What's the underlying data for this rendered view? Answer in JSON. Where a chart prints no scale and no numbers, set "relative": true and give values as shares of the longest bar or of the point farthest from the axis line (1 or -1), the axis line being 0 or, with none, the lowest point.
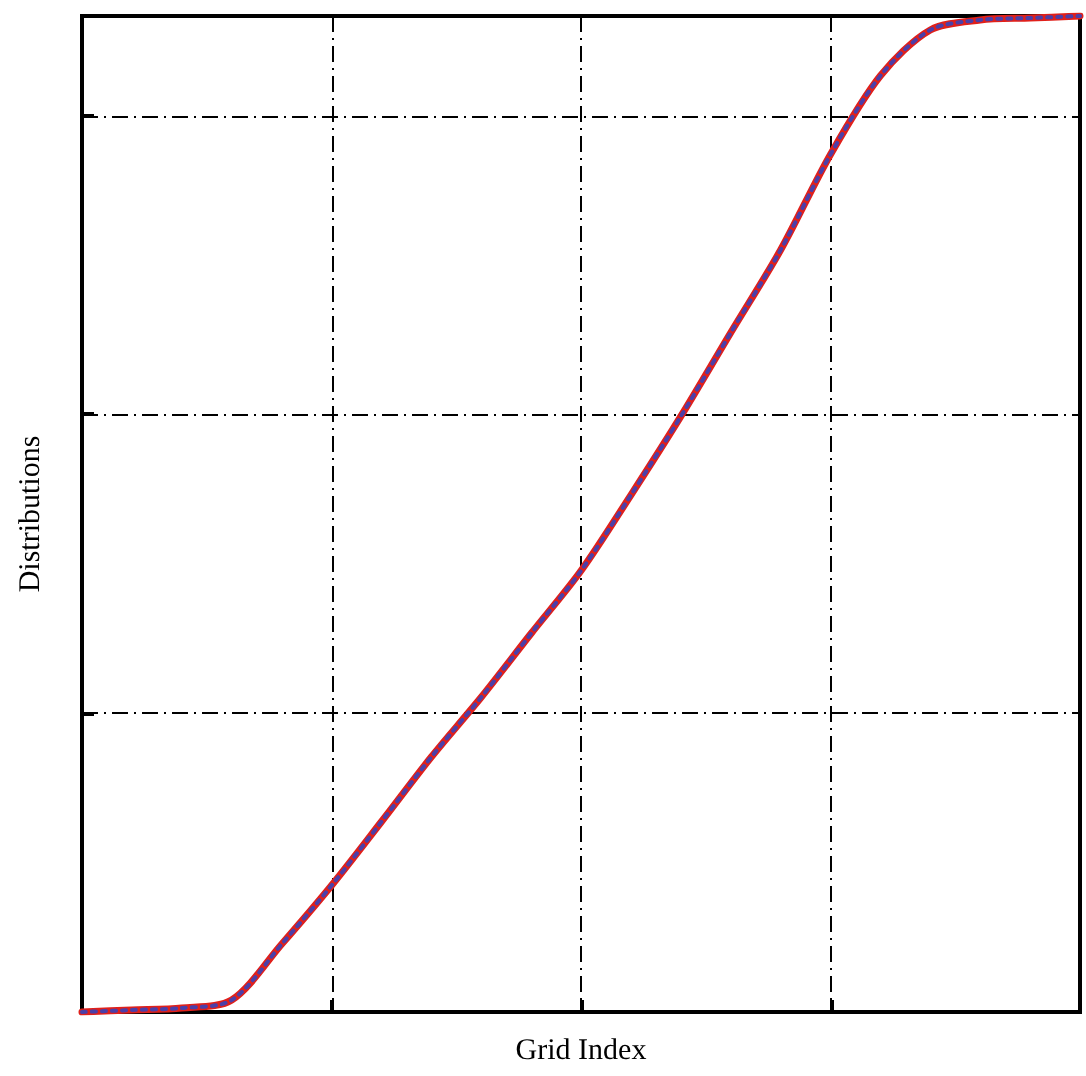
{
  "chart_data": {
    "type": "line",
    "relative": true,
    "xlabel": "Grid Index",
    "ylabel": "Distributions",
    "grid": true,
    "marker": "none",
    "categories": [
      null,
      null,
      null,
      null,
      null,
      null,
      null,
      null,
      null,
      null,
      null,
      null,
      null,
      null,
      null,
      null,
      null,
      null,
      null,
      null,
      null
    ],
    "series": [
      {
        "color": "#e0201b",
        "line_style": "solid",
        "values": [
          0,
          0.002,
          0.004,
          0.012,
          0.068,
          0.127,
          0.191,
          0.256,
          0.316,
          0.38,
          0.443,
          0.519,
          0.598,
          0.682,
          0.765,
          0.861,
          0.94,
          0.986,
          0.996,
          0.998,
          1
        ]
      },
      {
        "color": "#4b3fa8",
        "line_style": "dotted",
        "values": [
          0,
          0.002,
          0.004,
          0.012,
          0.068,
          0.127,
          0.191,
          0.256,
          0.316,
          0.38,
          0.443,
          0.519,
          0.598,
          0.682,
          0.765,
          0.861,
          0.94,
          0.986,
          0.996,
          0.998,
          1
        ]
      }
    ]
  }
}
